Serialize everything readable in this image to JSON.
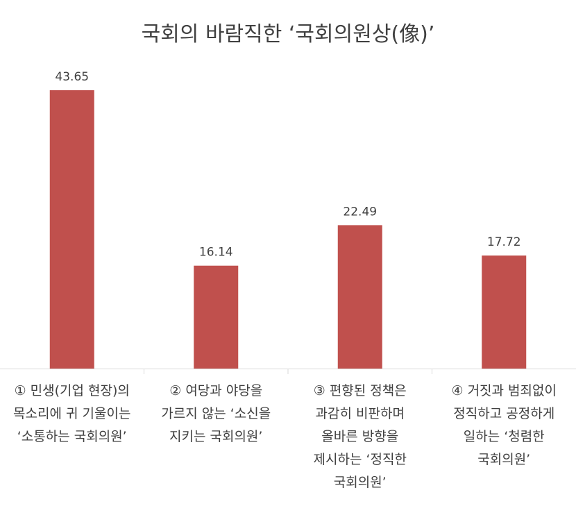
{
  "chart_data": {
    "type": "bar",
    "title": "국회의 바람직한 ‘국회의원상(像)’",
    "categories": [
      [
        "① 민생(기업 현장)의",
        "목소리에 귀 기울이는",
        "‘소통하는 국회의원’"
      ],
      [
        "② 여당과 야당을",
        "가르지 않는 ‘소신을",
        "지키는 국회의원’"
      ],
      [
        "③ 편향된 정책은",
        "과감히 비판하며",
        "올바른 방향을",
        "제시하는 ‘정직한",
        "국회의원’"
      ],
      [
        "④ 거짓과 범죄없이",
        "정직하고 공정하게",
        "일하는 ‘청렴한",
        "국회의원’"
      ]
    ],
    "values": [
      43.65,
      16.14,
      22.49,
      17.72
    ],
    "value_labels": [
      "43.65",
      "16.14",
      "22.49",
      "17.72"
    ],
    "ylim": [
      0,
      50
    ],
    "grid": false,
    "bar_color": "#c0504d",
    "axis_color": "#d9d9d9",
    "text_color": "#404040"
  }
}
